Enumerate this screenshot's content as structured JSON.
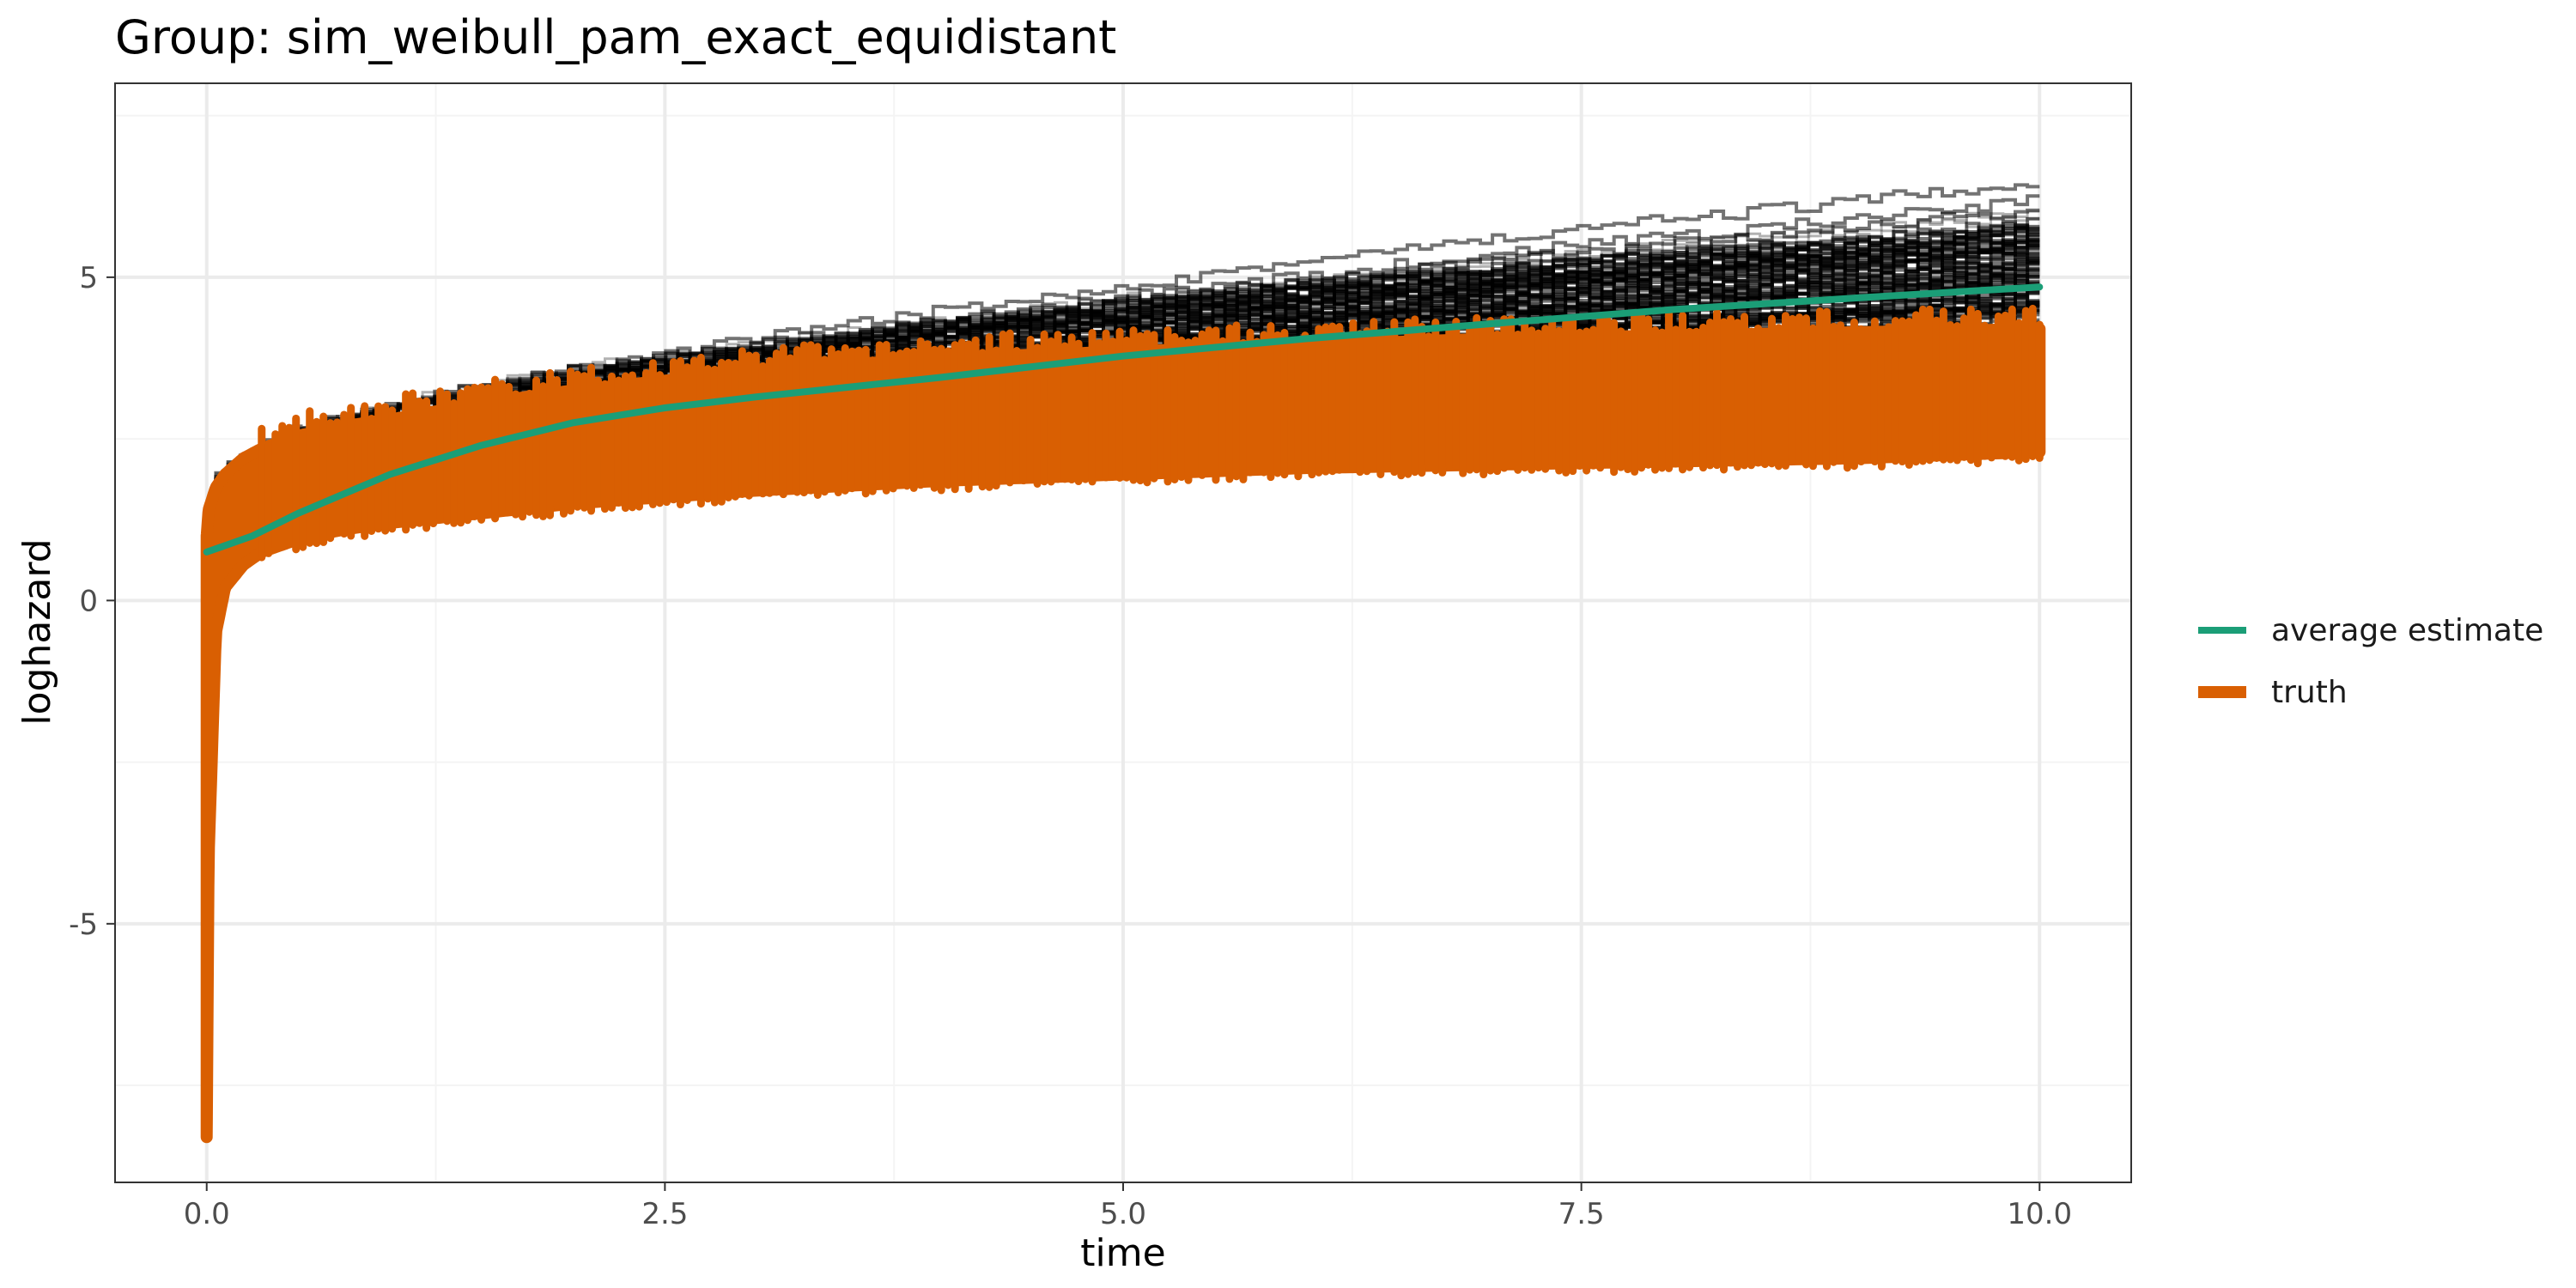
{
  "chart_data": {
    "type": "line",
    "title": "Group: sim_weibull_pam_exact_equidistant",
    "xlabel": "time",
    "ylabel": "loghazard",
    "xlim": [
      -0.5,
      10.5
    ],
    "ylim": [
      -9,
      8
    ],
    "x_ticks": [
      0.0,
      2.5,
      5.0,
      7.5,
      10.0
    ],
    "x_tick_labels": [
      "0.0",
      "2.5",
      "5.0",
      "7.5",
      "10.0"
    ],
    "x_minor_ticks": [
      1.25,
      3.75,
      6.25,
      8.75
    ],
    "y_ticks": [
      -5,
      0,
      5
    ],
    "y_tick_labels": [
      "-5",
      "0",
      "5"
    ],
    "y_minor_ticks": [
      -7.5,
      -2.5,
      2.5,
      7.5
    ],
    "grid": true,
    "legend_position": "right",
    "colors": {
      "estimates": "#000000",
      "average_estimate": "#1b9e77",
      "truth": "#d95f02",
      "panel_border": "#333333",
      "grid_major": "#ebebeb",
      "grid_minor": "#f4f4f4"
    },
    "series": [
      {
        "name": "average estimate",
        "color": "#1b9e77",
        "x": [
          0.0,
          0.25,
          0.5,
          0.75,
          1.0,
          1.5,
          2.0,
          2.5,
          3.0,
          4.0,
          5.0,
          6.0,
          7.0,
          8.0,
          9.0,
          10.0
        ],
        "y": [
          0.75,
          1.0,
          1.35,
          1.65,
          1.95,
          2.4,
          2.75,
          2.98,
          3.15,
          3.45,
          3.78,
          4.05,
          4.28,
          4.5,
          4.68,
          4.85
        ]
      },
      {
        "name": "truth",
        "color": "#d95f02",
        "band": true,
        "x": [
          0.0,
          0.01,
          0.05,
          0.1,
          0.2,
          0.3,
          0.5,
          0.75,
          1.0,
          1.5,
          2.0,
          2.5,
          3.0,
          4.0,
          5.0,
          6.0,
          7.0,
          8.0,
          9.0,
          10.0
        ],
        "y_low": [
          -8.3,
          -4.0,
          -0.5,
          0.2,
          0.55,
          0.75,
          0.95,
          1.1,
          1.2,
          1.35,
          1.5,
          1.6,
          1.7,
          1.85,
          1.95,
          2.05,
          2.1,
          2.15,
          2.2,
          2.3
        ],
        "y_high": [
          1.0,
          1.4,
          1.75,
          1.95,
          2.2,
          2.35,
          2.55,
          2.7,
          2.8,
          3.05,
          3.25,
          3.4,
          3.55,
          3.75,
          3.85,
          3.95,
          4.05,
          4.1,
          4.15,
          4.2
        ]
      },
      {
        "role": "simulation-estimates",
        "color": "#000000",
        "band": true,
        "x": [
          0.0,
          0.1,
          0.25,
          0.5,
          1.0,
          1.5,
          2.0,
          2.5,
          3.0,
          4.0,
          5.0,
          6.0,
          7.0,
          8.0,
          9.0,
          10.0
        ],
        "y_low": [
          0.5,
          0.7,
          0.95,
          1.2,
          1.55,
          1.8,
          2.05,
          2.3,
          2.5,
          2.85,
          3.15,
          3.35,
          3.5,
          3.6,
          3.7,
          3.75
        ],
        "y_high": [
          1.6,
          1.9,
          2.2,
          2.6,
          3.0,
          3.3,
          3.55,
          3.75,
          3.95,
          4.3,
          4.6,
          4.9,
          5.15,
          5.4,
          5.6,
          5.85
        ]
      }
    ]
  }
}
